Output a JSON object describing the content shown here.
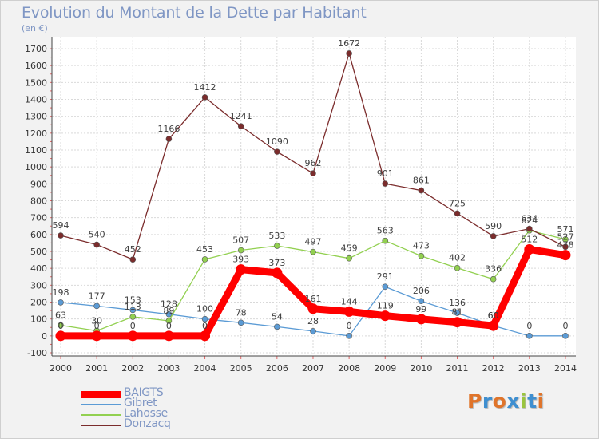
{
  "title": "Evolution du Montant de la Dette par Habitant",
  "subtitle": "(en €)",
  "brand": {
    "text": "Proxiti",
    "letter_colors": [
      "#e0742a",
      "#3f8fd0",
      "#e0742a",
      "#3f8fd0",
      "#9ac53f",
      "#3f8fd0",
      "#e0742a"
    ]
  },
  "chart_data": {
    "type": "line",
    "categories": [
      "2000",
      "2001",
      "2002",
      "2003",
      "2004",
      "2005",
      "2006",
      "2007",
      "2008",
      "2009",
      "2010",
      "2011",
      "2012",
      "2013",
      "2014"
    ],
    "ylim": [
      -100,
      1700
    ],
    "yticks": [
      -100,
      0,
      100,
      200,
      300,
      400,
      500,
      600,
      700,
      800,
      900,
      1000,
      1100,
      1200,
      1300,
      1400,
      1500,
      1600,
      1700
    ],
    "grid": true,
    "legend_position": "bottom-left",
    "series": [
      {
        "name": "BAIGTS",
        "color": "#ff0000",
        "values": [
          0,
          0,
          0,
          0,
          0,
          393,
          373,
          161,
          144,
          119,
          99,
          81,
          60,
          512,
          478
        ],
        "labels": [
          "0",
          "0",
          "0",
          "0",
          "0",
          "393",
          "373",
          "161",
          "144",
          "119",
          "99",
          "81",
          "60",
          "512",
          "478"
        ]
      },
      {
        "name": "Gibret",
        "color": "#5b9bd5",
        "values": [
          198,
          177,
          153,
          128,
          100,
          78,
          54,
          28,
          0,
          291,
          206,
          136,
          60,
          0,
          0
        ],
        "labels": [
          "198",
          "177",
          "153",
          "128",
          "100",
          "78",
          "54",
          "28",
          "0",
          "291",
          "206",
          "136",
          "60",
          "0",
          "0"
        ]
      },
      {
        "name": "Lahosse",
        "color": "#92d050",
        "values": [
          63,
          30,
          113,
          89,
          453,
          507,
          533,
          497,
          459,
          563,
          473,
          402,
          336,
          624,
          571
        ],
        "labels": [
          "63",
          "30",
          "113",
          "89",
          "453",
          "507",
          "533",
          "497",
          "459",
          "563",
          "473",
          "402",
          "336",
          "624",
          "571"
        ]
      },
      {
        "name": "Donzacq",
        "color": "#7b2c2c",
        "values": [
          594,
          540,
          452,
          1166,
          1412,
          1241,
          1090,
          962,
          1672,
          901,
          861,
          725,
          590,
          634,
          527
        ],
        "labels": [
          "594",
          "540",
          "452",
          "1166",
          "1412",
          "1241",
          "1090",
          "962",
          "1672",
          "901",
          "861",
          "725",
          "590",
          "634",
          "527"
        ]
      }
    ]
  }
}
